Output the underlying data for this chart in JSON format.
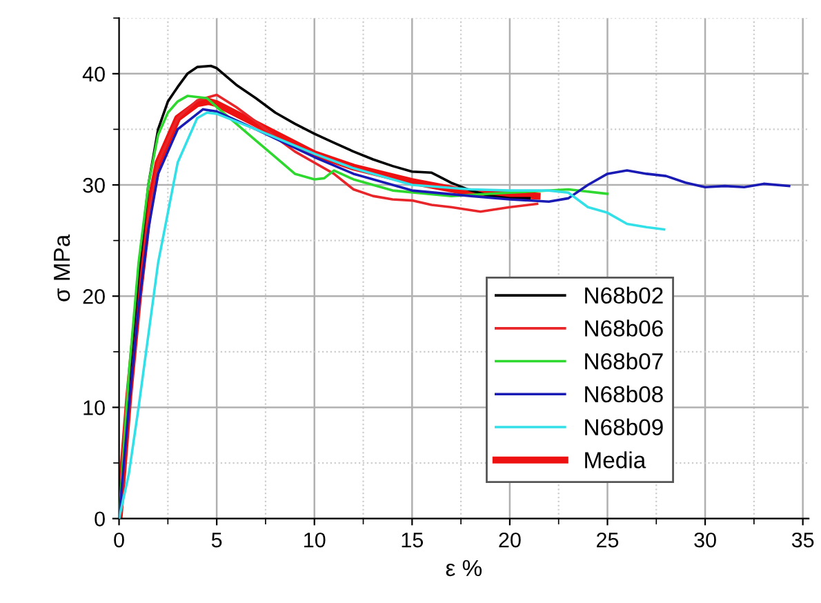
{
  "chart_data": {
    "type": "line",
    "xlabel": "ε %",
    "ylabel": "σ MPa",
    "xlim": [
      0,
      35.3
    ],
    "ylim": [
      0,
      45
    ],
    "xticks": [
      0,
      5,
      10,
      15,
      20,
      25,
      30,
      35
    ],
    "yticks": [
      0,
      10,
      20,
      30,
      40
    ],
    "grid": true,
    "legend": "lower right",
    "marker": "none",
    "line_style": "solid",
    "series": [
      {
        "name": "N68b02",
        "color": "#000000",
        "x": [
          0,
          0.5,
          1,
          1.5,
          2,
          2.5,
          3,
          3.5,
          4,
          4.7,
          5,
          6,
          7,
          8,
          9,
          10,
          11,
          12,
          13,
          14,
          15,
          16,
          17,
          18,
          19,
          20,
          21
        ],
        "values": [
          0,
          12,
          22,
          30,
          35,
          37.5,
          38.8,
          40,
          40.6,
          40.7,
          40.5,
          39,
          37.8,
          36.5,
          35.5,
          34.6,
          33.8,
          33,
          32.3,
          31.7,
          31.2,
          31.1,
          30.2,
          29.5,
          29,
          28.8,
          28.8
        ]
      },
      {
        "name": "N68b06",
        "color": "#e8262a",
        "x": [
          0,
          0.5,
          1,
          1.5,
          2,
          3,
          4,
          5,
          6,
          7,
          8,
          9,
          10,
          11,
          12,
          13,
          14,
          15,
          16,
          17,
          18.5,
          20,
          21.4
        ],
        "values": [
          0,
          10,
          19,
          27,
          32,
          36,
          37.6,
          38.1,
          37,
          35.7,
          34.3,
          33,
          32,
          31,
          29.6,
          29,
          28.7,
          28.6,
          28.2,
          28,
          27.6,
          28,
          28.3
        ]
      },
      {
        "name": "N68b07",
        "color": "#2ed82e",
        "x": [
          0,
          0.5,
          1,
          1.5,
          2,
          2.5,
          3,
          3.5,
          4.5,
          5,
          6,
          7,
          8,
          9,
          10,
          10.5,
          11,
          12,
          14,
          17,
          20,
          23,
          25
        ],
        "values": [
          0,
          13,
          23,
          30,
          34.5,
          36.5,
          37.5,
          38,
          37.8,
          37,
          35.5,
          34,
          32.5,
          31,
          30.5,
          30.6,
          31.3,
          30.5,
          29.5,
          29,
          29.3,
          29.6,
          29.2
        ]
      },
      {
        "name": "N68b08",
        "color": "#1a1ab4",
        "x": [
          0,
          0.5,
          1,
          1.5,
          2,
          3,
          4.3,
          5,
          7,
          10,
          12,
          15,
          18,
          20,
          22,
          23,
          24,
          25,
          26,
          27,
          28,
          29,
          30,
          31,
          32,
          33,
          34.3
        ],
        "values": [
          0,
          10,
          19,
          26,
          31,
          35,
          36.8,
          36.6,
          35,
          32.5,
          31,
          29.5,
          29,
          28.7,
          28.5,
          28.8,
          30,
          31,
          31.3,
          31,
          30.8,
          30.2,
          29.8,
          29.9,
          29.8,
          30.1,
          29.9
        ]
      },
      {
        "name": "N68b09",
        "color": "#33e0e8",
        "x": [
          0,
          0.5,
          1,
          2,
          3,
          4,
          4.5,
          5,
          7,
          10,
          12,
          15,
          18,
          20,
          22,
          23,
          24,
          25,
          26,
          27,
          27.9
        ],
        "values": [
          0,
          4,
          10,
          23,
          32,
          36,
          36.5,
          36.4,
          35,
          32.8,
          31.5,
          30,
          29.6,
          29.5,
          29.5,
          29.3,
          28,
          27.5,
          26.5,
          26.2,
          26
        ]
      },
      {
        "name": "Media",
        "color": "#ee1111",
        "x": [
          0,
          0.5,
          1,
          1.5,
          2,
          3,
          4,
          4.6,
          5,
          7,
          10,
          12,
          15,
          18,
          21.4
        ],
        "values": [
          0,
          11,
          20,
          27.5,
          32,
          36,
          37.3,
          37.5,
          37.3,
          35.5,
          32.8,
          31.6,
          30.3,
          29.3,
          29
        ]
      }
    ]
  }
}
